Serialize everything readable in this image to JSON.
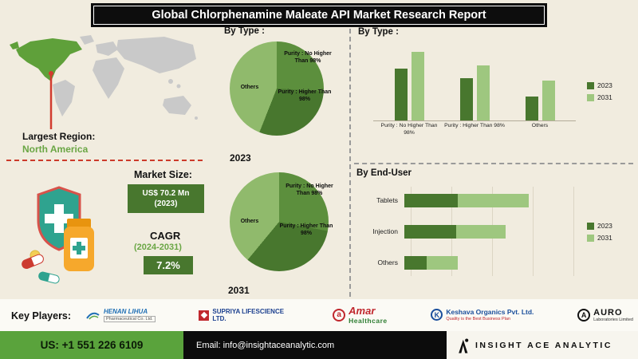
{
  "title": "Global Chlorphenamine Maleate API Market Research Report",
  "map": {
    "largest_region_label": "Largest Region:",
    "largest_region_value": "North America"
  },
  "market": {
    "size_label": "Market Size:",
    "size_value_line1": "US$ 70.2 Mn",
    "size_value_line2": "(2023)",
    "cagr_label": "CAGR",
    "cagr_period": "(2024-2031)",
    "cagr_value": "7.2%"
  },
  "key_players": {
    "label": "Key Players:",
    "players": [
      {
        "name": "HENAN LIHUA",
        "subtitle": "Pharmaceutical Co. Ltd."
      },
      {
        "name": "SUPRIYA LIFESCIENCE LTD.",
        "subtitle": ""
      },
      {
        "name": "Amar",
        "subtitle": "Healthcare"
      },
      {
        "name": "Keshava Organics Pvt. Ltd.",
        "subtitle": "Quality is the Best Business Plan"
      },
      {
        "name": "AURO",
        "subtitle": "Laboratories Limited"
      }
    ]
  },
  "icons": {
    "amar_monogram": "a",
    "keshava_monogram": "K",
    "auro_monogram": "A"
  },
  "footer": {
    "phone": "US: +1 551 226 6109",
    "email": "Email: info@insightaceanalytic.com",
    "brand": "INSIGHT ACE ANALYTIC"
  },
  "colors": {
    "dark_green": "#48772e",
    "light_green": "#9ec77f",
    "pie_others_green": "#90ba6c",
    "banner_black": "#0d0d0d",
    "background_beige": "#f1ecdf",
    "accent_red": "#cc3a2a",
    "footer_green": "#5aa33c"
  },
  "chart_data": [
    {
      "id": "pie-2023",
      "type": "pie",
      "title": "By Type :",
      "year_label": "2023",
      "slices": [
        {
          "label": "Purity : No Higher Than 98%",
          "value": 26,
          "color": "#5c8f3d"
        },
        {
          "label": "Purity : Higher Than 98%",
          "value": 30,
          "color": "#48772e"
        },
        {
          "label": "Others",
          "value": 44,
          "color": "#90ba6c"
        }
      ]
    },
    {
      "id": "pie-2031",
      "type": "pie",
      "year_label": "2031",
      "slices": [
        {
          "label": "Purity : No Higher Than 98%",
          "value": 28,
          "color": "#5c8f3d"
        },
        {
          "label": "Purity : Higher Than 98%",
          "value": 33,
          "color": "#48772e"
        },
        {
          "label": "Others",
          "value": 39,
          "color": "#90ba6c"
        }
      ]
    },
    {
      "id": "bytype-bar",
      "type": "bar",
      "title": "By  Type :",
      "ymax": 80,
      "categories": [
        "Purity : No Higher Than 98%",
        "Purity : Higher Than 98%",
        "Others"
      ],
      "series": [
        {
          "name": "2023",
          "color": "#48772e",
          "values": [
            55,
            45,
            25
          ]
        },
        {
          "name": "2031",
          "color": "#9ec77f",
          "values": [
            72,
            58,
            42
          ]
        }
      ],
      "legend_position": "right"
    },
    {
      "id": "enduser-bar",
      "type": "bar-horizontal-stacked",
      "title": "By End-User",
      "xmax": 100,
      "categories": [
        "Tablets",
        "Injection",
        "Others"
      ],
      "series": [
        {
          "name": "2023",
          "color": "#48772e",
          "values": [
            31,
            30,
            13
          ]
        },
        {
          "name": "2031",
          "color": "#9ec77f",
          "values": [
            41,
            29,
            18
          ]
        }
      ],
      "legend_position": "right"
    }
  ]
}
